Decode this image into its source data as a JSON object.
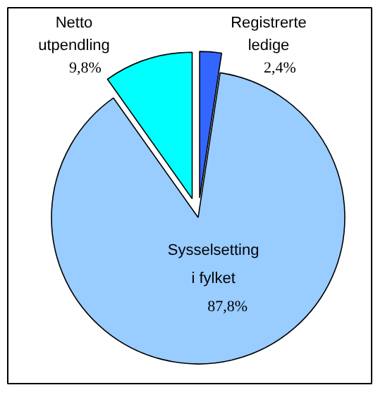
{
  "chart_data": {
    "type": "pie",
    "categories": [
      "Registrerte ledige",
      "Sysselsetting i fylket",
      "Netto utpendling"
    ],
    "values": [
      2.4,
      87.8,
      9.8
    ],
    "colors": [
      "#3366ff",
      "#99ccff",
      "#00ffff"
    ],
    "value_labels": [
      "2,4%",
      "87,8%",
      "9,8%"
    ],
    "legend": false
  }
}
